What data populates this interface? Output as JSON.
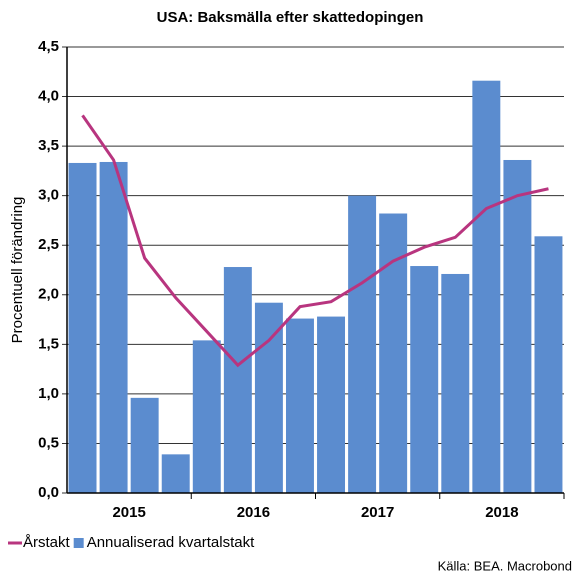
{
  "chart_data": {
    "type": "bar",
    "title": "USA: Baksmälla efter skattedopingen",
    "y_label": "Procentuell förändring",
    "source": "Källa: BEA. Macrobond",
    "categories": [
      null,
      null,
      null,
      null,
      null,
      null,
      null,
      null,
      null,
      null,
      null,
      null,
      null,
      null,
      null,
      null
    ],
    "year_labels": [
      "2015",
      "2016",
      "2017",
      "2018"
    ],
    "series": [
      {
        "name": "Annualiserad kvartalstakt",
        "type": "bar",
        "color": "#5b8ccf",
        "values": [
          3.33,
          3.34,
          0.96,
          0.39,
          1.54,
          2.28,
          1.92,
          1.76,
          1.78,
          3.0,
          2.82,
          2.29,
          2.21,
          4.16,
          3.36,
          2.59
        ]
      },
      {
        "name": "Årstakt",
        "type": "line",
        "color": "#b8357f",
        "values": [
          3.81,
          3.36,
          2.37,
          1.97,
          1.63,
          1.29,
          1.54,
          1.88,
          1.93,
          2.12,
          2.34,
          2.48,
          2.58,
          2.87,
          3.0,
          3.07
        ]
      }
    ],
    "legend_order": [
      1,
      0
    ],
    "ylim": [
      0,
      4.5
    ],
    "yticks": [
      {
        "value": 0,
        "label": "0,0"
      },
      {
        "value": 0.5,
        "label": "0,5"
      },
      {
        "value": 1,
        "label": "1,0"
      },
      {
        "value": 1.5,
        "label": "1,5"
      },
      {
        "value": 2,
        "label": "2,0"
      },
      {
        "value": 2.5,
        "label": "2,5"
      },
      {
        "value": 3,
        "label": "3,0"
      },
      {
        "value": 3.5,
        "label": "3,5"
      },
      {
        "value": 4,
        "label": "4,0"
      },
      {
        "value": 4.5,
        "label": "4,5"
      }
    ],
    "grid": true
  }
}
